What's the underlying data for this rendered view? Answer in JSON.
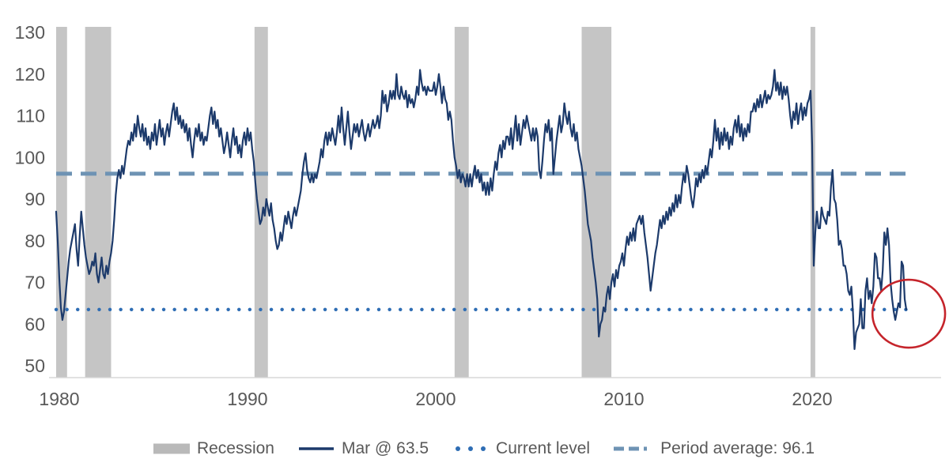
{
  "colors": {
    "series": "#1c3a6b",
    "current_level": "#2e6db4",
    "period_average": "#6e93b4",
    "recession_band": "#c5c5c5",
    "recession_legend": "#b9b9b9",
    "axis_text": "#595959",
    "axis_line": "#d8d8d8",
    "annotation_red": "#c5242b",
    "background": "#ffffff"
  },
  "legend": {
    "items": [
      {
        "id": "recession",
        "label": "Recession",
        "swatch": "recession-band"
      },
      {
        "id": "series",
        "label": "Mar @ 63.5",
        "swatch": "solid-line"
      },
      {
        "id": "current-level",
        "label": "Current level",
        "swatch": "dotted-line"
      },
      {
        "id": "period-average",
        "label": "Period average: 96.1",
        "swatch": "dashed-line"
      }
    ]
  },
  "chart_data": {
    "type": "line",
    "xlabel": "",
    "ylabel": "",
    "x_axis": {
      "ticks": [
        1980,
        1990,
        2000,
        2010,
        2020
      ],
      "range": [
        1980,
        2027.3
      ]
    },
    "y_axis": {
      "ticks": [
        130,
        120,
        110,
        100,
        90,
        80,
        70,
        60,
        50
      ],
      "range": [
        50,
        130
      ]
    },
    "grid": false,
    "legend_position": "bottom",
    "reference_lines": [
      {
        "name": "Current level",
        "value": 63.5,
        "style": "dotted"
      },
      {
        "name": "Period average: 96.1",
        "value": 96.1,
        "style": "dashed"
      }
    ],
    "recessions": [
      [
        1980.0,
        1980.58
      ],
      [
        1981.54,
        1982.92
      ],
      [
        1990.54,
        1991.25
      ],
      [
        2001.17,
        2001.92
      ],
      [
        2007.92,
        2009.5
      ],
      [
        2020.08,
        2020.33
      ]
    ],
    "annotation": {
      "type": "ellipse",
      "center_year": 2025.3,
      "center_value": 62.5,
      "radius_years": 1.93,
      "radius_units": 8.15
    },
    "series": [
      {
        "name": "Mar @ 63.5",
        "frequency": "monthly",
        "start_year": 1980,
        "start_month": 1,
        "end_label": "Mar 2025",
        "current_value": 63.5,
        "values": [
          87,
          80,
          71,
          64,
          61,
          63,
          67,
          71,
          75,
          78,
          80,
          82,
          84,
          78,
          74,
          81,
          87,
          83,
          79,
          76,
          74,
          72,
          73,
          75,
          74,
          77,
          72,
          70,
          73,
          76,
          72,
          71,
          74,
          72,
          75,
          77,
          80,
          85,
          91,
          95,
          97,
          95,
          98,
          96,
          99,
          102,
          104,
          103,
          106,
          104,
          108,
          105,
          110,
          107,
          105,
          108,
          104,
          107,
          103,
          105,
          102,
          106,
          104,
          108,
          103,
          106,
          109,
          105,
          107,
          103,
          106,
          108,
          105,
          108,
          111,
          113,
          109,
          112,
          108,
          110,
          107,
          109,
          106,
          108,
          104,
          107,
          103,
          100,
          104,
          107,
          105,
          108,
          104,
          106,
          103,
          105,
          104,
          107,
          110,
          112,
          108,
          111,
          107,
          109,
          105,
          107,
          104,
          101,
          103,
          106,
          103,
          100,
          104,
          107,
          103,
          105,
          101,
          103,
          100,
          104,
          106,
          103,
          107,
          104,
          106,
          102,
          99,
          94,
          90,
          87,
          84,
          85,
          88,
          86,
          90,
          88,
          86,
          89,
          85,
          83,
          80,
          78,
          79,
          82,
          80,
          83,
          86,
          84,
          87,
          85,
          83,
          86,
          88,
          86,
          88,
          90,
          92,
          96,
          99,
          101,
          97,
          95,
          94,
          96,
          94,
          96,
          95,
          97,
          99,
          102,
          100,
          104,
          106,
          103,
          106,
          104,
          107,
          105,
          103,
          106,
          110,
          106,
          112,
          107,
          103,
          107,
          111,
          106,
          102,
          105,
          108,
          106,
          108,
          105,
          107,
          109,
          106,
          104,
          106,
          108,
          105,
          107,
          109,
          107,
          108,
          110,
          107,
          110,
          116,
          113,
          115,
          111,
          113,
          116,
          114,
          116,
          114,
          120,
          115,
          114,
          117,
          115,
          114,
          116,
          112,
          115,
          113,
          114,
          112,
          114,
          117,
          115,
          121,
          118,
          116,
          117,
          115,
          117,
          116,
          116,
          116,
          118,
          115,
          117,
          120,
          117,
          113,
          117,
          114,
          113,
          109,
          111,
          109,
          104,
          100,
          98,
          95,
          97,
          94,
          96,
          95,
          93,
          96,
          93,
          96,
          93,
          96,
          98,
          95,
          97,
          94,
          96,
          92,
          94,
          91,
          94,
          91,
          95,
          92,
          96,
          99,
          97,
          101,
          103,
          100,
          104,
          102,
          105,
          105,
          103,
          107,
          102,
          106,
          110,
          104,
          108,
          103,
          106,
          109,
          107,
          110,
          108,
          106,
          104,
          107,
          104,
          107,
          105,
          97,
          95,
          99,
          104,
          108,
          106,
          109,
          104,
          107,
          96,
          100,
          104,
          107,
          110,
          106,
          108,
          113,
          110,
          108,
          111,
          107,
          105,
          108,
          104,
          106,
          102,
          100,
          98,
          95,
          92,
          88,
          84,
          82,
          80,
          76,
          73,
          70,
          66,
          57,
          60,
          61,
          64,
          63,
          67,
          69,
          66,
          70,
          72,
          69,
          73,
          71,
          74,
          75,
          77,
          74,
          78,
          81,
          79,
          82,
          80,
          83,
          80,
          84,
          85,
          86,
          84,
          86,
          82,
          79,
          76,
          72,
          68,
          71,
          74,
          77,
          79,
          82,
          85,
          83,
          86,
          84,
          87,
          85,
          88,
          86,
          89,
          87,
          91,
          88,
          91,
          89,
          93,
          96,
          94,
          98,
          96,
          93,
          90,
          88,
          91,
          95,
          93,
          96,
          94,
          97,
          95,
          98,
          96,
          99,
          102,
          100,
          104,
          109,
          104,
          107,
          102,
          106,
          103,
          107,
          104,
          106,
          102,
          105,
          103,
          107,
          109,
          106,
          110,
          105,
          108,
          104,
          107,
          105,
          108,
          106,
          111,
          111,
          113,
          111,
          114,
          112,
          115,
          112,
          114,
          116,
          113,
          115,
          114,
          115,
          117,
          121,
          116,
          118,
          115,
          118,
          114,
          117,
          115,
          117,
          114,
          110,
          107,
          111,
          109,
          113,
          108,
          111,
          113,
          109,
          112,
          110,
          113,
          114,
          116,
          103,
          74,
          82,
          87,
          83,
          83,
          88,
          86,
          85,
          84,
          87,
          86,
          93,
          97,
          90,
          89,
          85,
          79,
          80,
          78,
          74,
          74,
          72,
          68,
          67,
          69,
          63,
          54,
          58,
          59,
          60,
          66,
          59,
          59,
          68,
          71,
          66,
          68,
          65,
          69,
          77,
          76,
          71,
          71,
          68,
          73,
          82,
          79,
          83,
          79,
          70,
          66,
          63,
          61,
          63,
          65,
          64,
          75,
          74,
          66,
          63.5
        ]
      }
    ]
  }
}
